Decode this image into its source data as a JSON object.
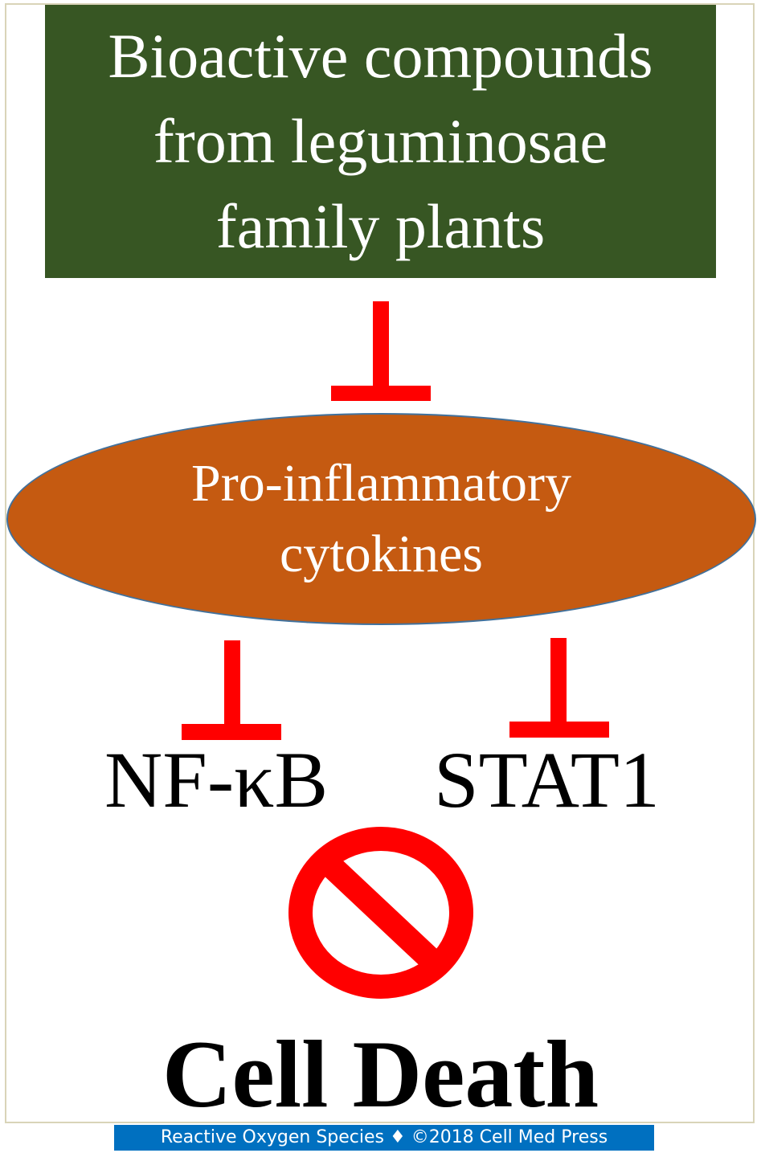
{
  "diagram": {
    "top_box": {
      "text": "Bioactive compounds\nfrom leguminosae\nfamily plants",
      "color": "#375623"
    },
    "ellipse": {
      "text": "Pro-inflammatory\ncytokines",
      "color": "#c55a11"
    },
    "targets": [
      {
        "label": "NF-κB"
      },
      {
        "label": "STAT1"
      }
    ],
    "outcome": {
      "label": "Cell Death"
    },
    "inhibition_color": "#ff0000",
    "prohibit_icon": "no-sign-icon"
  },
  "footer": {
    "text": "Reactive Oxygen Species ♦ ©2018 Cell Med Press",
    "color": "#0070c0"
  }
}
